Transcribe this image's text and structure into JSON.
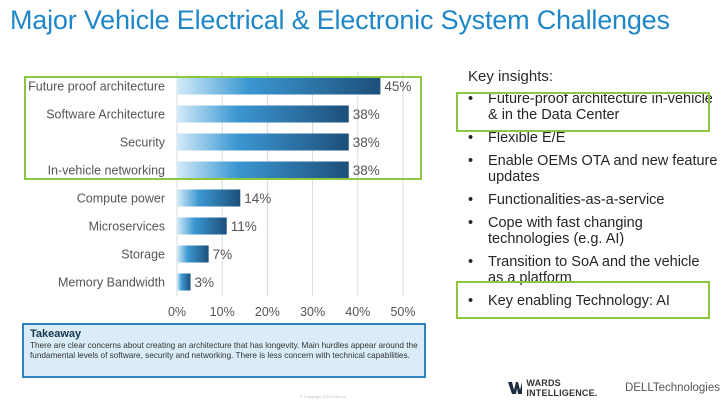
{
  "title": "Major Vehicle Electrical & Electronic System Challenges",
  "chart_data": {
    "type": "bar",
    "orientation": "horizontal",
    "categories": [
      "Future proof architecture",
      "Software Architecture",
      "Security",
      "In-vehicle networking",
      "Compute power",
      "Microservices",
      "Storage",
      "Memory Bandwidth"
    ],
    "values": [
      45,
      38,
      38,
      38,
      14,
      11,
      7,
      3
    ],
    "value_labels": [
      "45%",
      "38%",
      "38%",
      "38%",
      "14%",
      "11%",
      "7%",
      "3%"
    ],
    "xticks": [
      "0%",
      "10%",
      "20%",
      "30%",
      "40%",
      "50%"
    ],
    "xlim": [
      0,
      50
    ],
    "highlighted_categories": [
      "Future proof architecture",
      "Software Architecture",
      "Security",
      "In-vehicle networking"
    ],
    "colors": {
      "bar_dark": "#1d4f7a",
      "bar_light": "#d2ebf9",
      "highlight": "#8dc63f",
      "grid": "#d9d9d9"
    }
  },
  "takeaway": {
    "title": "Takeaway",
    "text": "There are clear concerns about creating an architecture that has longevity. Main hurdles appear around the fundamental levels of software, security and networking. There is less concern with technical capabilities."
  },
  "insights": {
    "title": "Key insights:",
    "bullet": "•",
    "items": [
      "Future-proof architecture in-vehicle & in the Data Center",
      "Flexible E/E",
      "Enable OEMs OTA and new feature updates",
      "Functionalities-as-a-service",
      "Cope with fast changing technologies (e.g. AI)",
      "Transition to SoA and the vehicle as a platform",
      "Key enabling Technology: AI"
    ]
  },
  "footer": {
    "wards_label": "WARDS INTELLIGENCE.",
    "dell_label": "DELLTechnologies",
    "fine_print": "© Copyright 2019 Dell Inc."
  }
}
